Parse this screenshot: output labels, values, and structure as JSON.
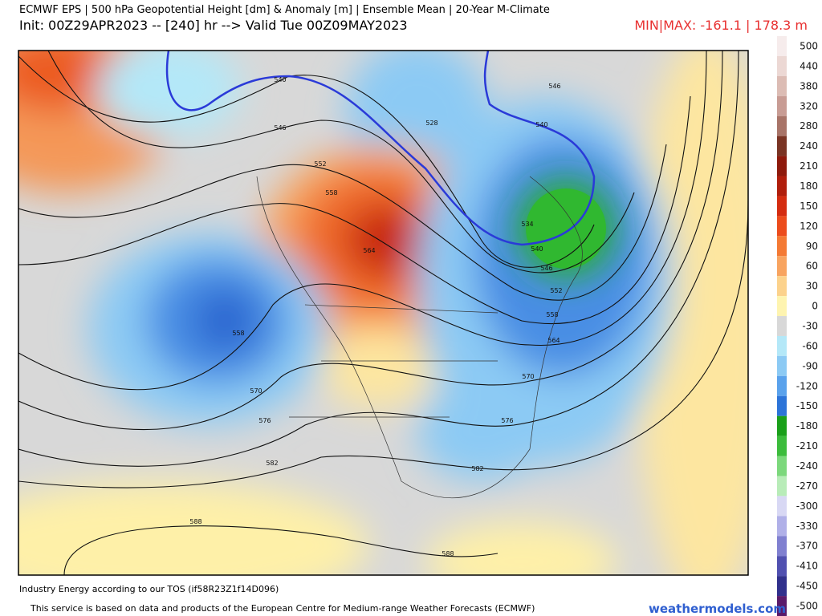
{
  "header": {
    "title": "ECMWF EPS | 500 hPa Geopotential Height [dm] & Anomaly [m] | Ensemble Mean | 20-Year M-Climate",
    "subtitle": "Init: 00Z29APR2023 -- [240] hr --> Valid Tue 00Z09MAY2023",
    "minmax": "MIN|MAX: -161.1 | 178.3 m"
  },
  "colorbar": [
    {
      "label": "500",
      "color": "#f6ecec"
    },
    {
      "label": "440",
      "color": "#ecd8d4"
    },
    {
      "label": "380",
      "color": "#dcbcb4"
    },
    {
      "label": "320",
      "color": "#c89c94"
    },
    {
      "label": "280",
      "color": "#a87468"
    },
    {
      "label": "240",
      "color": "#7a3424"
    },
    {
      "label": "210",
      "color": "#8e1a0c"
    },
    {
      "label": "180",
      "color": "#b01e0c"
    },
    {
      "label": "150",
      "color": "#d42c10"
    },
    {
      "label": "120",
      "color": "#ec4c1c"
    },
    {
      "label": "90",
      "color": "#f47a34"
    },
    {
      "label": "60",
      "color": "#f8a460"
    },
    {
      "label": "30",
      "color": "#fcd28c"
    },
    {
      "label": "0",
      "color": "#fef4b0"
    },
    {
      "label": "-30",
      "color": "#d8d8d8"
    },
    {
      "label": "-60",
      "color": "#b4e8f8"
    },
    {
      "label": "-90",
      "color": "#8ccaf4"
    },
    {
      "label": "-120",
      "color": "#5aa2ec"
    },
    {
      "label": "-150",
      "color": "#2c74d8"
    },
    {
      "label": "-180",
      "color": "#1aa01a"
    },
    {
      "label": "-210",
      "color": "#3cbc3c"
    },
    {
      "label": "-240",
      "color": "#7cd87c"
    },
    {
      "label": "-270",
      "color": "#b8ecb8"
    },
    {
      "label": "-300",
      "color": "#d8d8f4"
    },
    {
      "label": "-330",
      "color": "#b0b0e8"
    },
    {
      "label": "-370",
      "color": "#8080d0"
    },
    {
      "label": "-410",
      "color": "#5050b0"
    },
    {
      "label": "-450",
      "color": "#30308c"
    },
    {
      "label": "-500",
      "color": "#5a1a6a"
    }
  ],
  "contour_labels": [
    "540",
    "546",
    "552",
    "558",
    "564",
    "528",
    "546",
    "540",
    "534",
    "540",
    "546",
    "552",
    "558",
    "564",
    "570",
    "576",
    "582",
    "588",
    "588",
    "582",
    "576",
    "570",
    "558"
  ],
  "footer": {
    "terms": "Industry Energy according to our TOS (if58R23Z1f14D096)",
    "credit": "This service is based on data and products of the European Centre for Medium-range Weather Forecasts (ECMWF)",
    "site": "weathermodels.com"
  }
}
